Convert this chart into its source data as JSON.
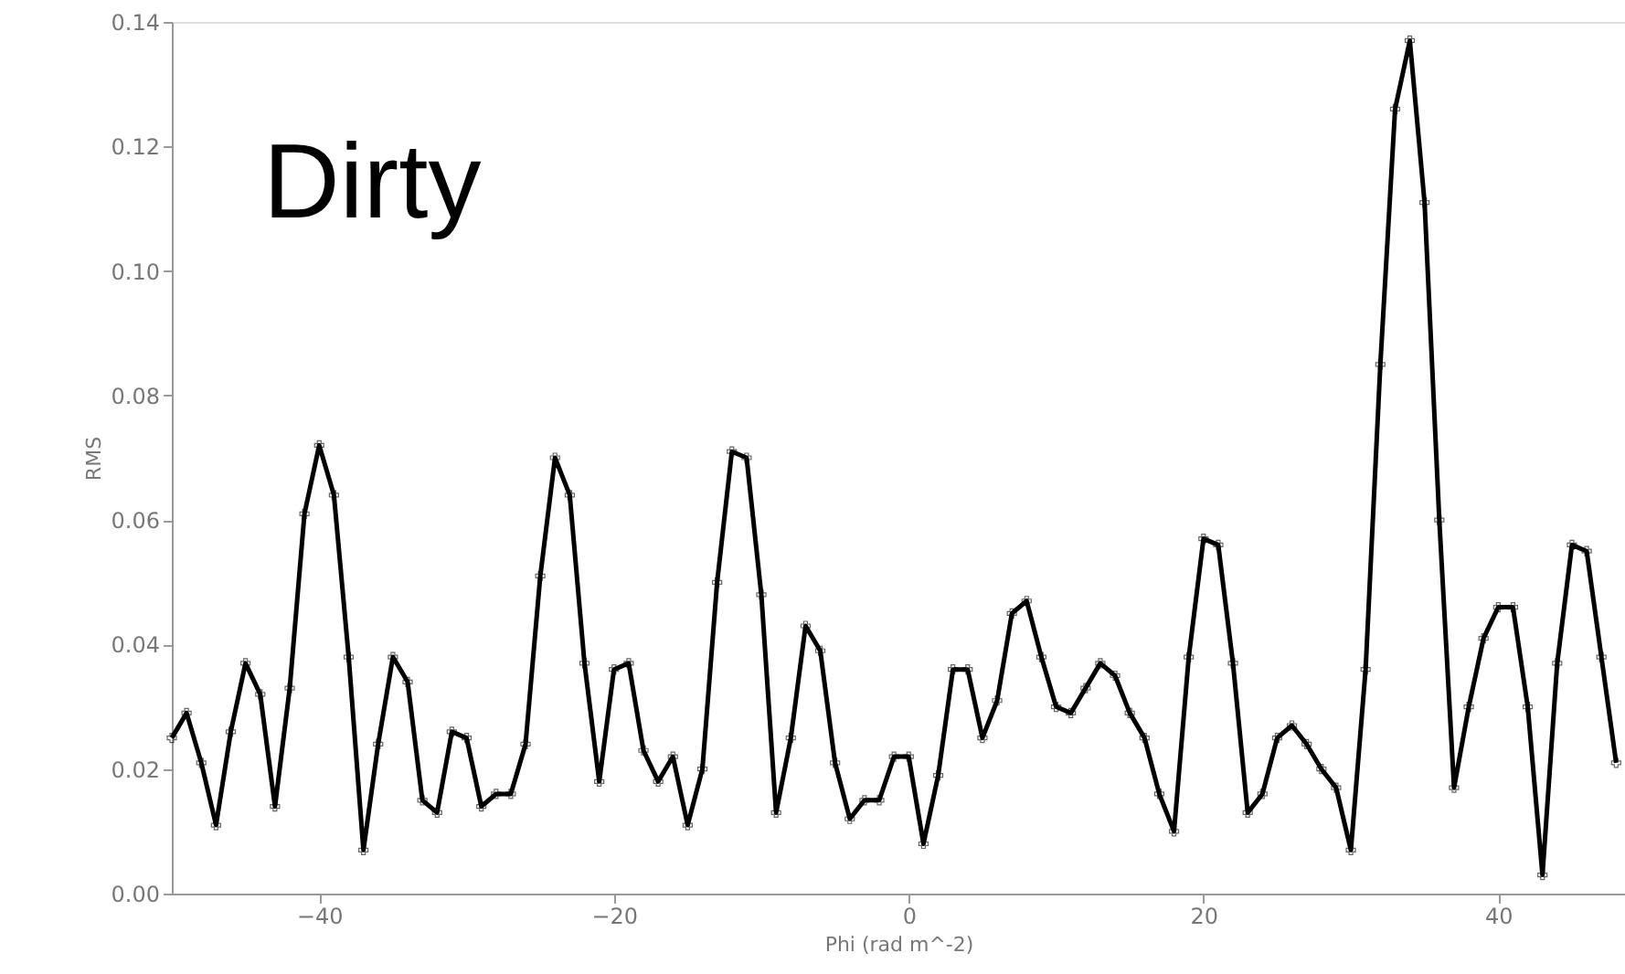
{
  "chart_data": {
    "type": "line",
    "xlabel": "Phi (rad m^-2)",
    "ylabel": "RMS",
    "annotations": [
      "Dirty"
    ],
    "x": [
      -50,
      -49,
      -48,
      -47,
      -46,
      -45,
      -44,
      -43,
      -42,
      -41,
      -40,
      -39,
      -38,
      -37,
      -36,
      -35,
      -34,
      -33,
      -32,
      -31,
      -30,
      -29,
      -28,
      -27,
      -26,
      -25,
      -24,
      -23,
      -22,
      -21,
      -20,
      -19,
      -18,
      -17,
      -16,
      -15,
      -14,
      -13,
      -12,
      -11,
      -10,
      -9,
      -8,
      -7,
      -6,
      -5,
      -4,
      -3,
      -2,
      -1,
      0,
      1,
      2,
      3,
      4,
      5,
      6,
      7,
      8,
      9,
      10,
      11,
      12,
      13,
      14,
      15,
      16,
      17,
      18,
      19,
      20,
      21,
      22,
      23,
      24,
      25,
      26,
      27,
      28,
      29,
      30,
      31,
      32,
      33,
      34,
      35,
      36,
      37,
      38,
      39,
      40,
      41,
      42,
      43,
      44,
      45,
      46,
      47,
      48
    ],
    "series": [
      {
        "color": "#000000",
        "values": [
          0.025,
          0.029,
          0.021,
          0.011,
          0.026,
          0.037,
          0.032,
          0.014,
          0.033,
          0.061,
          0.072,
          0.064,
          0.038,
          0.007,
          0.024,
          0.038,
          0.034,
          0.015,
          0.013,
          0.026,
          0.025,
          0.014,
          0.016,
          0.016,
          0.024,
          0.051,
          0.07,
          0.064,
          0.037,
          0.018,
          0.036,
          0.037,
          0.023,
          0.018,
          0.022,
          0.011,
          0.02,
          0.05,
          0.071,
          0.07,
          0.048,
          0.013,
          0.025,
          0.043,
          0.039,
          0.021,
          0.012,
          0.015,
          0.015,
          0.022,
          0.022,
          0.008,
          0.019,
          0.036,
          0.036,
          0.025,
          0.031,
          0.045,
          0.047,
          0.038,
          0.03,
          0.029,
          0.033,
          0.037,
          0.035,
          0.029,
          0.025,
          0.016,
          0.01,
          0.038,
          0.057,
          0.056,
          0.037,
          0.013,
          0.016,
          0.025,
          0.027,
          0.024,
          0.02,
          0.017,
          0.007,
          0.036,
          0.085,
          0.126,
          0.137,
          0.111,
          0.06,
          0.017,
          0.03,
          0.041,
          0.046,
          0.046,
          0.03,
          0.003,
          0.037,
          0.056,
          0.055,
          0.038,
          0.021
        ]
      }
    ],
    "xlim": [
      -50,
      48.6
    ],
    "xticks": [
      -40,
      -20,
      0,
      20,
      40
    ],
    "ylim": [
      0,
      0.14
    ],
    "yticks": [
      {
        "value": 0,
        "label": "0.00"
      },
      {
        "value": 0.02,
        "label": "0.02"
      },
      {
        "value": 0.04,
        "label": "0.04"
      },
      {
        "value": 0.06,
        "label": "0.06"
      },
      {
        "value": 0.08,
        "label": "0.08"
      },
      {
        "value": 0.1,
        "label": "0.10"
      },
      {
        "value": 0.12,
        "label": "0.12"
      },
      {
        "value": 0.14,
        "label": "0.14"
      }
    ],
    "marker": "cross",
    "line_style": "solid",
    "grid": false
  }
}
